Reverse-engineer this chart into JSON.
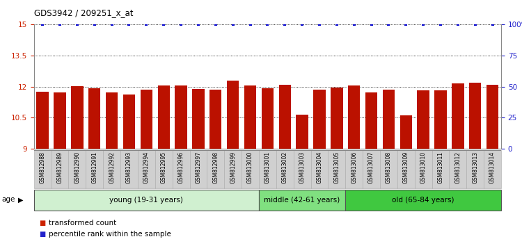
{
  "title": "GDS3942 / 209251_x_at",
  "samples": [
    "GSM812988",
    "GSM812989",
    "GSM812990",
    "GSM812991",
    "GSM812992",
    "GSM812993",
    "GSM812994",
    "GSM812995",
    "GSM812996",
    "GSM812997",
    "GSM812998",
    "GSM812999",
    "GSM813000",
    "GSM813001",
    "GSM813002",
    "GSM813003",
    "GSM813004",
    "GSM813005",
    "GSM813006",
    "GSM813007",
    "GSM813008",
    "GSM813009",
    "GSM813010",
    "GSM813011",
    "GSM813012",
    "GSM813013",
    "GSM813014"
  ],
  "red_values": [
    11.75,
    11.72,
    12.02,
    11.93,
    11.72,
    11.62,
    11.85,
    12.07,
    12.05,
    11.88,
    11.85,
    12.28,
    12.05,
    11.92,
    12.1,
    10.65,
    11.85,
    11.95,
    12.05,
    11.72,
    11.85,
    10.62,
    11.82,
    11.82,
    12.15,
    12.18,
    12.1
  ],
  "blue_values_pct": [
    100,
    100,
    100,
    100,
    100,
    100,
    100,
    100,
    100,
    100,
    100,
    100,
    100,
    100,
    100,
    100,
    100,
    100,
    100,
    100,
    100,
    100,
    100,
    100,
    100,
    100,
    100
  ],
  "ylim_left": [
    9,
    15
  ],
  "ylim_right": [
    0,
    100
  ],
  "yticks_left": [
    9,
    10.5,
    12,
    13.5,
    15
  ],
  "yticks_right": [
    0,
    25,
    50,
    75,
    100
  ],
  "ytick_labels_right": [
    "0",
    "25",
    "50",
    "75",
    "100%"
  ],
  "groups": [
    {
      "label": "young (19-31 years)",
      "start": 0,
      "end": 13,
      "color": "#d0f0d0"
    },
    {
      "label": "middle (42-61 years)",
      "start": 13,
      "end": 18,
      "color": "#80e080"
    },
    {
      "label": "old (65-84 years)",
      "start": 18,
      "end": 27,
      "color": "#40c840"
    }
  ],
  "bar_color": "#bb1100",
  "dot_color": "#0000cc",
  "plot_bg": "#ffffff",
  "tick_box_color": "#d0d0d0",
  "left_tick_color": "#cc2200",
  "right_tick_color": "#2222cc",
  "legend_items": [
    {
      "label": "transformed count",
      "color": "#cc2200"
    },
    {
      "label": "percentile rank within the sample",
      "color": "#2222cc"
    }
  ],
  "bar_width": 0.7,
  "label_fontsize": 5.5,
  "tick_fontsize": 7.5
}
